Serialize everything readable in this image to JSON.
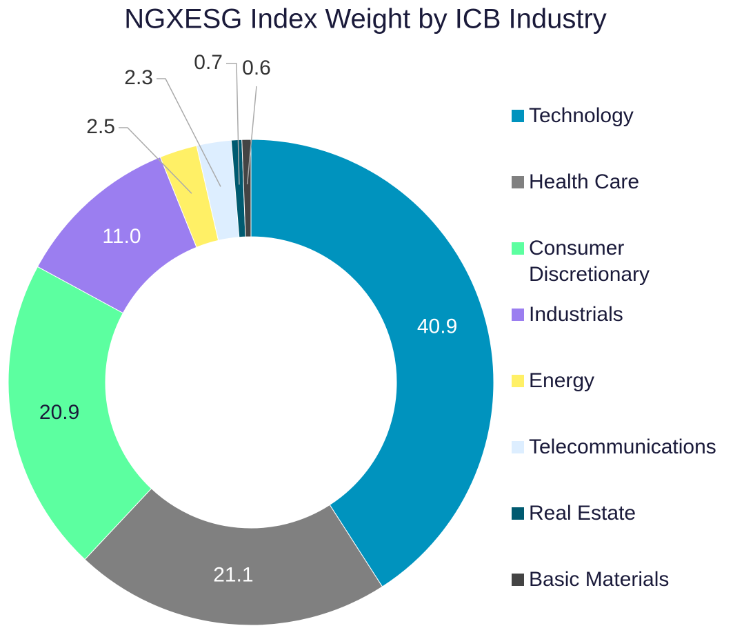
{
  "chart_data": {
    "type": "donut",
    "title": "NGXESG Index Weight by ICB Industry",
    "categories": [
      "Technology",
      "Health Care",
      "Consumer Discretionary",
      "Industrials",
      "Energy",
      "Telecommunications",
      "Real Estate",
      "Basic Materials"
    ],
    "values": [
      40.9,
      21.1,
      20.9,
      11.0,
      2.5,
      2.3,
      0.7,
      0.6
    ],
    "value_labels": [
      "40.9",
      "21.1",
      "20.9",
      "11.0",
      "2.5",
      "2.3",
      "0.7",
      "0.6"
    ],
    "colors": [
      "#0093be",
      "#808080",
      "#5cffa0",
      "#9b7ef0",
      "#fff066",
      "#ddeeff",
      "#005a70",
      "#444444"
    ],
    "legend": "right"
  }
}
